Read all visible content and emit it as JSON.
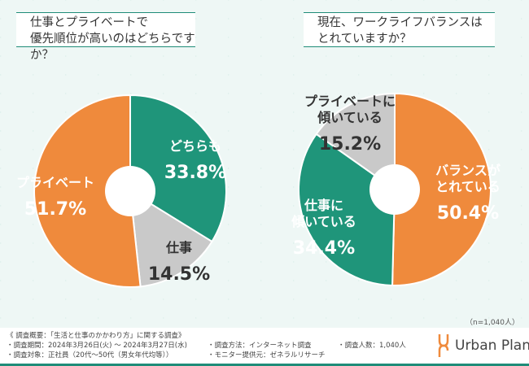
{
  "chart_data": [
    {
      "type": "pie",
      "title": "仕事とプライベートで\n優先順位が高いのはどちらですか？",
      "title_lines": [
        "仕事とプライベートで",
        "優先順位が高いのはどちらですか？"
      ],
      "slices": [
        {
          "label": "どちらも",
          "value": 33.8,
          "color": "#1f957a"
        },
        {
          "label": "仕事",
          "value": 14.5,
          "color": "#c9c9c9"
        },
        {
          "label": "プライベート",
          "value": 51.7,
          "color": "#ef8a3c"
        }
      ]
    },
    {
      "type": "pie",
      "title": "現在、ワークライフバランスは\nとれていますか？",
      "title_lines": [
        "現在、ワークライフバランスは",
        "とれていますか？"
      ],
      "slices": [
        {
          "label": "バランスがとれている",
          "value": 50.4,
          "color": "#ef8a3c"
        },
        {
          "label": "仕事に傾いている",
          "value": 34.4,
          "color": "#1f957a"
        },
        {
          "label": "プライベートに傾いている",
          "value": 15.2,
          "color": "#c9c9c9"
        }
      ]
    }
  ],
  "sample_note": "（n=1,040人）",
  "footer": {
    "heading": "《 調査概要：「生活と仕事のかかわり方」に関する調査》",
    "period": "・調査期間：2024年3月26日(火) ～ 2024年3月27日(水)",
    "target": "・調査対象：正社員（20代～50代（男女年代均等））",
    "method": "・調査方法：インターネット調査",
    "provider": "・モニター提供元：ゼネラルリサーチ",
    "count": "・調査人数：1,040人",
    "brand": "Urban Plan"
  }
}
